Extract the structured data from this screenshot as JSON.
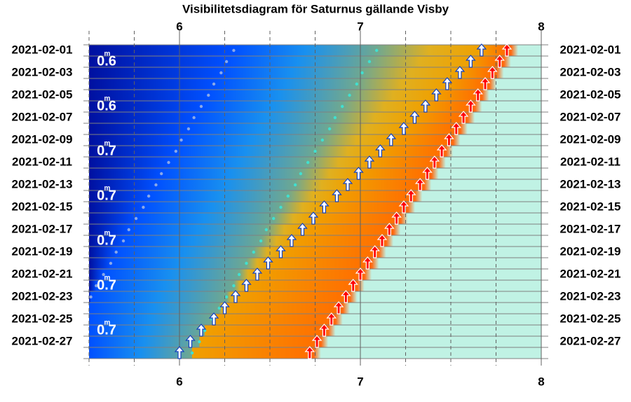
{
  "chart_data": {
    "type": "visibility",
    "title": "Visibilitetsdiagram för Saturnus gällande Visby",
    "categories": [
      "2021-02-01",
      null,
      "2021-02-03",
      null,
      "2021-02-05",
      null,
      "2021-02-07",
      null,
      "2021-02-09",
      null,
      "2021-02-11",
      null,
      "2021-02-13",
      null,
      "2021-02-15",
      null,
      "2021-02-17",
      null,
      "2021-02-19",
      null,
      "2021-02-21",
      null,
      "2021-02-23",
      null,
      "2021-02-25",
      null,
      "2021-02-27",
      null
    ],
    "xlim": [
      5.5,
      8
    ],
    "xticks": [
      6,
      7,
      8
    ],
    "minor_xticks": [
      5.75,
      6.25,
      6.5,
      6.75,
      7.25,
      7.5,
      7.75
    ],
    "series": [
      {
        "marker": "dot",
        "color": "#8aa8e8",
        "values": [
          6.3,
          6.26,
          6.23,
          6.19,
          6.16,
          6.12,
          6.08,
          6.05,
          6.01,
          5.98,
          5.94,
          5.9,
          5.87,
          5.83,
          5.8,
          5.76,
          5.72,
          5.69,
          5.65,
          5.62,
          5.58,
          5.54,
          5.51,
          null,
          null,
          null,
          null,
          null
        ]
      },
      {
        "marker": "dot",
        "color": "#40e0d0",
        "values": [
          7.09,
          7.05,
          7.01,
          6.98,
          6.94,
          6.9,
          6.86,
          6.83,
          6.79,
          6.75,
          6.71,
          6.67,
          6.64,
          6.6,
          6.56,
          6.52,
          6.48,
          6.45,
          6.41,
          6.37,
          6.33,
          6.3,
          6.26,
          6.22,
          6.18,
          6.14,
          6.11,
          6.07
        ]
      },
      {
        "marker": "arrow",
        "color": "#ffffff",
        "outline": "#1040c0",
        "values": [
          7.67,
          7.61,
          7.55,
          7.48,
          7.42,
          7.36,
          7.3,
          7.24,
          7.17,
          7.11,
          7.05,
          6.99,
          6.93,
          6.87,
          6.8,
          6.74,
          6.68,
          6.62,
          6.56,
          6.49,
          6.43,
          6.37,
          6.31,
          6.25,
          6.19,
          6.12,
          6.06,
          6.0
        ]
      },
      {
        "marker": "arrow",
        "color": "#ff0000",
        "outline": "#ffffff",
        "values": [
          7.81,
          7.77,
          7.73,
          7.69,
          7.65,
          7.61,
          7.57,
          7.53,
          7.49,
          7.45,
          7.41,
          7.37,
          7.33,
          7.28,
          7.24,
          7.2,
          7.16,
          7.12,
          7.08,
          7.04,
          7.0,
          6.96,
          6.92,
          6.88,
          6.84,
          6.8,
          6.76,
          6.72
        ]
      }
    ],
    "magnitudes": {
      "unit": "m",
      "values": [
        null,
        0.6,
        null,
        null,
        null,
        0.6,
        null,
        null,
        null,
        0.7,
        null,
        null,
        null,
        0.7,
        null,
        null,
        null,
        0.7,
        null,
        null,
        null,
        0.7,
        null,
        null,
        null,
        0.7,
        null,
        null
      ],
      "value_labels": [
        null,
        "0.6",
        null,
        null,
        null,
        "0.6",
        null,
        null,
        null,
        "0.7",
        null,
        null,
        null,
        "0.7",
        null,
        null,
        null,
        "0.7",
        null,
        null,
        null,
        "0.7",
        null,
        null,
        null,
        "0.7",
        null,
        null
      ]
    }
  }
}
